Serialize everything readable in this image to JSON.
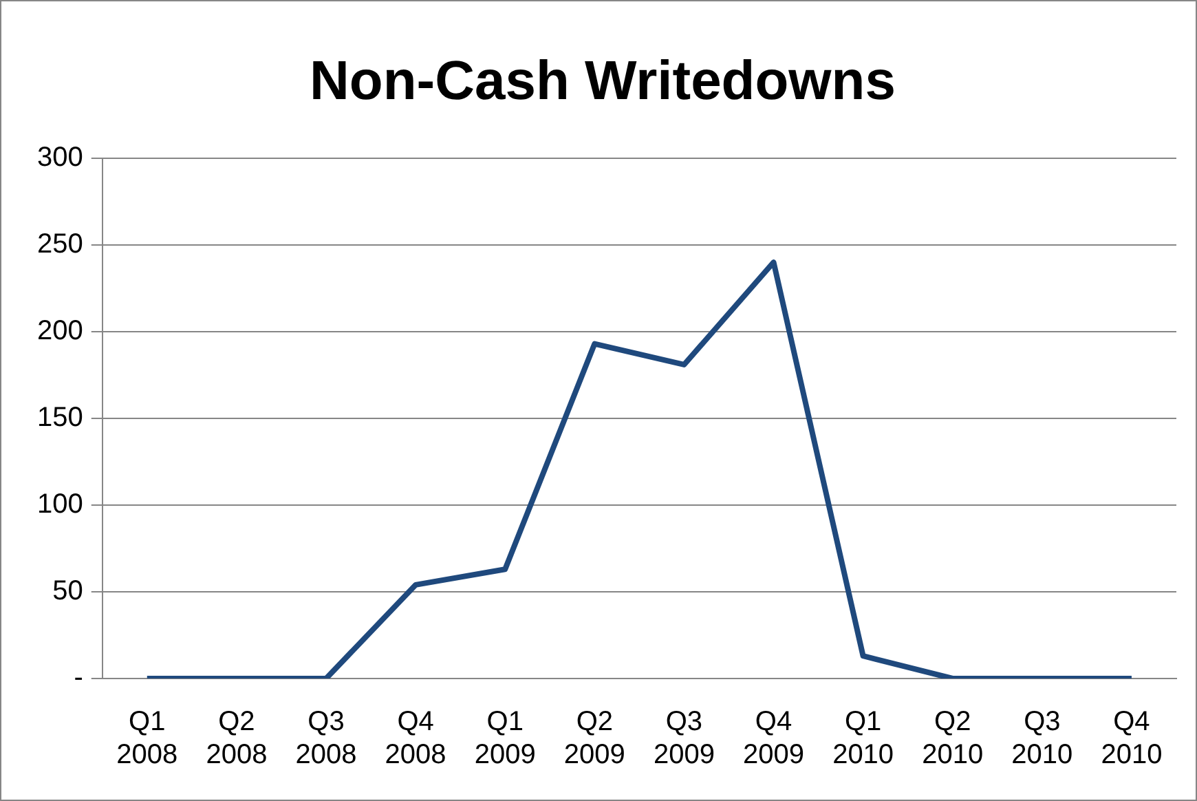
{
  "chart_data": {
    "type": "line",
    "title": "Non-Cash Writedowns",
    "categories": [
      "Q1 2008",
      "Q2 2008",
      "Q3 2008",
      "Q4 2008",
      "Q1 2009",
      "Q2 2009",
      "Q3 2009",
      "Q4 2009",
      "Q1 2010",
      "Q2 2010",
      "Q3 2010",
      "Q4 2010"
    ],
    "series": [
      {
        "color": "#1f497d",
        "values": [
          0,
          0,
          0,
          54,
          63,
          193,
          181,
          240,
          13,
          0,
          0,
          0
        ]
      }
    ],
    "ylim": [
      0,
      300
    ],
    "yticks": [
      {
        "value": 0,
        "label": "-"
      },
      50,
      100,
      150,
      200,
      250,
      300
    ],
    "grid": "y",
    "legend": false,
    "marker": "none",
    "line_style": "solid"
  }
}
